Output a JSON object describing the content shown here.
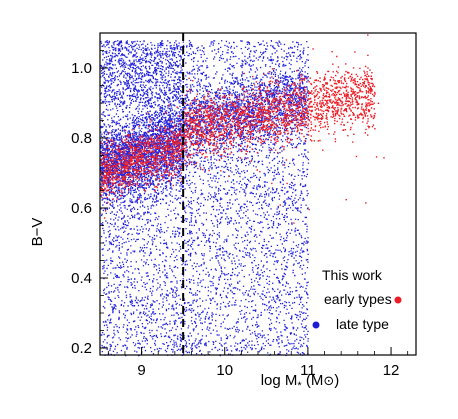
{
  "chart_data": {
    "type": "scatter",
    "title": "",
    "xlabel": "log M",
    "xlabel_subscript": "*",
    "xlabel_unit_open": " (M",
    "xlabel_unit_close": ")",
    "ylabel": "B−V",
    "xlim": [
      8.5,
      12.3
    ],
    "ylim": [
      0.18,
      1.1
    ],
    "xticks": [
      {
        "value": 9,
        "label": "9"
      },
      {
        "value": 10,
        "label": "10"
      },
      {
        "value": 11,
        "label": "11"
      },
      {
        "value": 12,
        "label": "12"
      }
    ],
    "yticks": [
      {
        "value": 0.2,
        "label": "0.2"
      },
      {
        "value": 0.4,
        "label": "0.4"
      },
      {
        "value": 0.6,
        "label": "0.6"
      },
      {
        "value": 0.8,
        "label": "0.8"
      },
      {
        "value": 1.0,
        "label": "1.0"
      }
    ],
    "grid": false,
    "vertical_line": {
      "x": 9.5,
      "style": "dashed",
      "color": "#000000"
    },
    "legend": {
      "placement": "bottom-right",
      "heading": "This work",
      "entries": [
        {
          "label": "early types",
          "color": "#ee1c25"
        },
        {
          "label": "late type",
          "color": "#1c1cd8"
        }
      ]
    },
    "series": [
      {
        "label": "late type",
        "color": "#2222dd",
        "distribution": [
          {
            "x": [
              8.5,
              9.5
            ],
            "y_center": [
              0.72,
              0.8
            ],
            "y_spread": 0.06,
            "count": 2600
          },
          {
            "x": [
              9.5,
              11.0
            ],
            "y_center": [
              0.84,
              0.92
            ],
            "y_spread": 0.05,
            "count": 1600
          },
          {
            "x": [
              8.5,
              11.0
            ],
            "y_min": 0.18,
            "y_max": 1.08,
            "count": 5000
          },
          {
            "x": [
              8.5,
              9.5
            ],
            "y_min": 0.9,
            "y_max": 1.08,
            "count": 700
          }
        ]
      },
      {
        "label": "early types",
        "color": "#ee1c25",
        "distribution": [
          {
            "x": [
              8.5,
              9.5
            ],
            "y_center": [
              0.7,
              0.78
            ],
            "y_spread": 0.04,
            "count": 1000
          },
          {
            "x": [
              9.5,
              11.8
            ],
            "y_center": [
              0.82,
              0.93
            ],
            "y_spread": 0.045,
            "count": 2000
          },
          {
            "x": [
              10.0,
              12.0
            ],
            "y_min": 0.55,
            "y_max": 1.0,
            "count": 30
          }
        ]
      }
    ]
  }
}
